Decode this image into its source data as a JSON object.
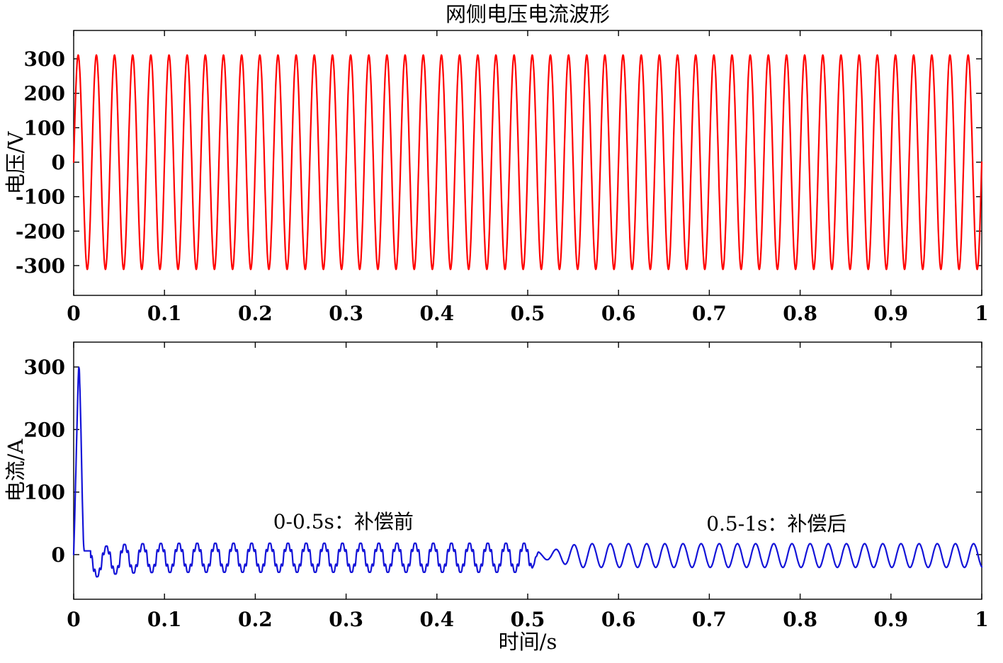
{
  "figure": {
    "background_color": "#ffffff"
  },
  "chart_data": [
    {
      "type": "line",
      "title": "网侧电压电流波形",
      "xlabel": "",
      "ylabel": "电压/V",
      "xlim": [
        0,
        1
      ],
      "ylim": [
        -390,
        390
      ],
      "xtick_labels": [
        "0",
        "0.1",
        "0.2",
        "0.3",
        "0.4",
        "0.5",
        "0.6",
        "0.7",
        "0.8",
        "0.9",
        "1"
      ],
      "ytick_labels": [
        "300",
        "200",
        "100",
        "0",
        "-100",
        "-200",
        "-300"
      ],
      "grid": false,
      "legend": null,
      "series": [
        {
          "name": "grid-voltage",
          "color": "#ff0000",
          "description": "50 Hz grid-side voltage sinusoid, 311 V peak (220 V RMS), 50 cycles over 0-1 s",
          "model": {
            "kind": "sinusoid",
            "amplitude": 311,
            "frequency_hz": 50,
            "phase_rad": 0,
            "offset": 0
          }
        }
      ]
    },
    {
      "type": "line",
      "title": "",
      "xlabel": "时间/s",
      "ylabel": "电流/A",
      "xlim": [
        0,
        1
      ],
      "ylim": [
        -72,
        342
      ],
      "xtick_labels": [
        "0",
        "0.1",
        "0.2",
        "0.3",
        "0.4",
        "0.5",
        "0.6",
        "0.7",
        "0.8",
        "0.9",
        "1"
      ],
      "ytick_labels": [
        "300",
        "200",
        "100",
        "0"
      ],
      "grid": false,
      "legend": null,
      "annotations": [
        {
          "text": "0-0.5s：补偿前",
          "x": 0.297,
          "y": 53,
          "color": "#ff0000"
        },
        {
          "text": "0.5-1s：补偿后",
          "x": 0.774,
          "y": 50,
          "color": "#ff0000"
        }
      ],
      "series": [
        {
          "name": "grid-current",
          "color": "#1414d8",
          "description": "Grid-side current: 300 A inrush spike near t=0, harmonic-distorted ~50Hz wave (peaks +18 A / troughs -28 A) before compensation (0-0.5 s), clean 19 A sine after compensation (0.5-1 s)",
          "model": {
            "frequency_hz": 50,
            "spike_points": [
              [
                0,
                0
              ],
              [
                0.0012,
                60
              ],
              [
                0.003,
                170
              ],
              [
                0.005,
                280
              ],
              [
                0.0056,
                300
              ],
              [
                0.0063,
                296
              ],
              [
                0.008,
                200
              ],
              [
                0.0095,
                90
              ],
              [
                0.0108,
                20
              ],
              [
                0.0115,
                6
              ]
            ],
            "flat_until": 0.0187,
            "flat_level": 6,
            "pre": {
              "t0": 0.011,
              "offset": -5,
              "harmonics": [
                {
                  "n": 1,
                  "amp": 22,
                  "phase": 0
                },
                {
                  "n": 5,
                  "amp": 3.8,
                  "phase": 0
                },
                {
                  "n": 7,
                  "amp": 2.7,
                  "phase": 0
                }
              ],
              "startup_dc": -10,
              "startup_tau": 0.022
            },
            "compensation_time": 0.5,
            "blend_end": 0.515,
            "post": {
              "t0": 0.506,
              "offset": -1.5,
              "amp_start": 5.5,
              "amp": 19,
              "ramp_start": 0.512,
              "ramp_dur": 0.05
            }
          }
        }
      ]
    }
  ]
}
